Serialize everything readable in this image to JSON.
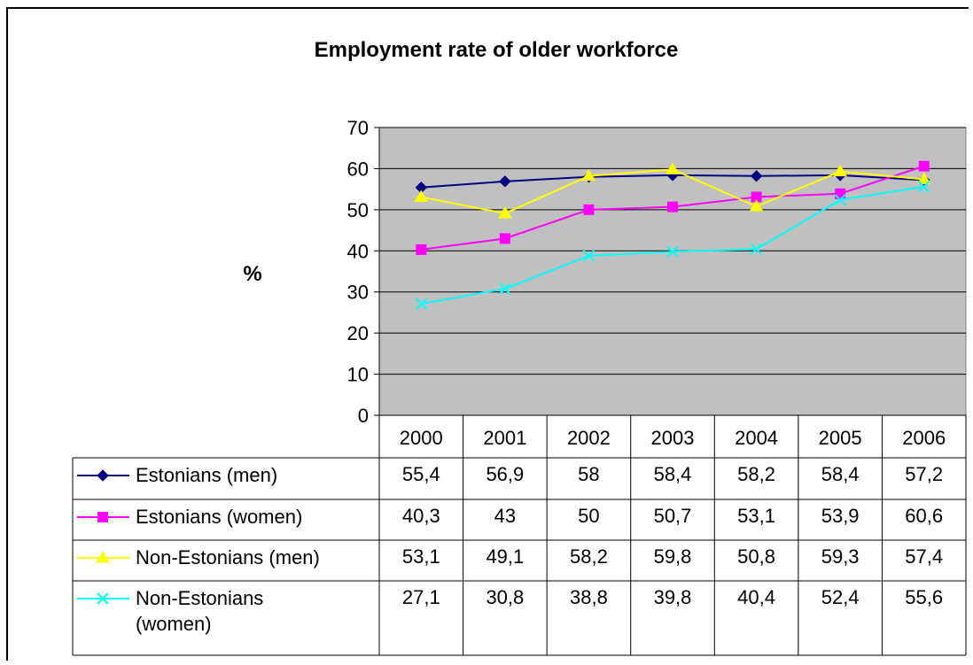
{
  "chart_data": {
    "type": "line",
    "title": "Employment rate of older workforce",
    "ylabel": "%",
    "xlabel": "",
    "ylim": [
      0,
      70
    ],
    "yticks": [
      0,
      10,
      20,
      30,
      40,
      50,
      60,
      70
    ],
    "grid": true,
    "legend": "data-table-below",
    "plot_background": "#c0c0c0",
    "categories": [
      "2000",
      "2001",
      "2002",
      "2003",
      "2004",
      "2005",
      "2006"
    ],
    "series": [
      {
        "name": "Estonians (men)",
        "color": "#000080",
        "marker": "diamond",
        "values": [
          55.4,
          56.9,
          58,
          58.4,
          58.2,
          58.4,
          57.2
        ],
        "labels": [
          "55,4",
          "56,9",
          "58",
          "58,4",
          "58,2",
          "58,4",
          "57,2"
        ]
      },
      {
        "name": "Estonians (women)",
        "color": "#ff00ff",
        "marker": "square",
        "values": [
          40.3,
          43,
          50,
          50.7,
          53.1,
          53.9,
          60.6
        ],
        "labels": [
          "40,3",
          "43",
          "50",
          "50,7",
          "53,1",
          "53,9",
          "60,6"
        ]
      },
      {
        "name": "Non-Estonians (men)",
        "color": "#ffff00",
        "marker": "triangle",
        "values": [
          53.1,
          49.1,
          58.2,
          59.8,
          50.8,
          59.3,
          57.4
        ],
        "labels": [
          "53,1",
          "49,1",
          "58,2",
          "59,8",
          "50,8",
          "59,3",
          "57,4"
        ]
      },
      {
        "name": "Non-Estonians (women)",
        "name_lines": [
          "Non-Estonians",
          "(women)"
        ],
        "color": "#00ffff",
        "marker": "x",
        "values": [
          27.1,
          30.8,
          38.8,
          39.8,
          40.4,
          52.4,
          55.6
        ],
        "labels": [
          "27,1",
          "30,8",
          "38,8",
          "39,8",
          "40,4",
          "52,4",
          "55,6"
        ]
      }
    ]
  }
}
